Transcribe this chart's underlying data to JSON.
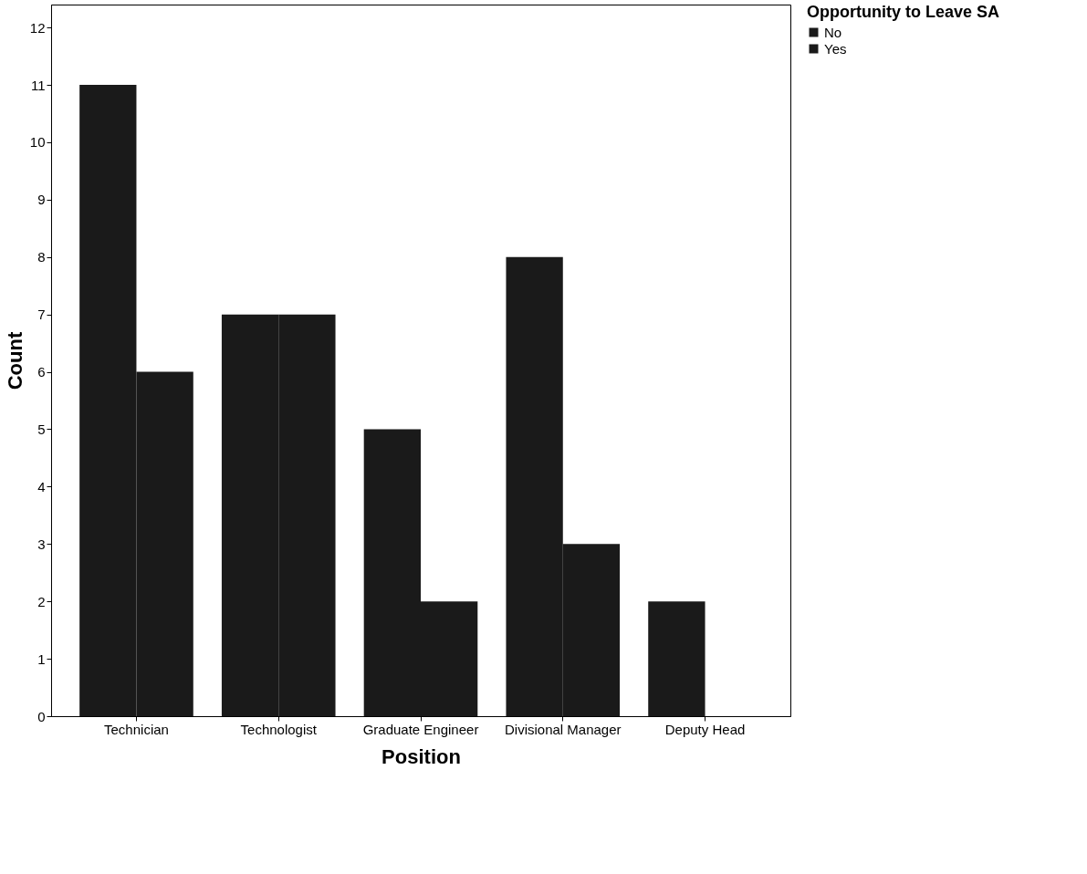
{
  "chart_data": {
    "type": "bar",
    "xlabel": "Position",
    "ylabel": "Count",
    "legend_title": "Opportunity to Leave SA",
    "categories": [
      "Technician",
      "Technologist",
      "Graduate Engineer",
      "Divisional Manager",
      "Deputy Head"
    ],
    "series": [
      {
        "name": "No",
        "color": "#1a1a1a",
        "values": [
          11,
          7,
          5,
          8,
          2
        ]
      },
      {
        "name": "Yes",
        "color": "#1a1a1a",
        "values": [
          6,
          7,
          2,
          3,
          0
        ]
      }
    ],
    "ylim": [
      0,
      12.4
    ],
    "yticks": [
      0,
      1,
      2,
      3,
      4,
      5,
      6,
      7,
      8,
      9,
      10,
      11,
      12
    ],
    "grid": false,
    "legend": "top right"
  }
}
